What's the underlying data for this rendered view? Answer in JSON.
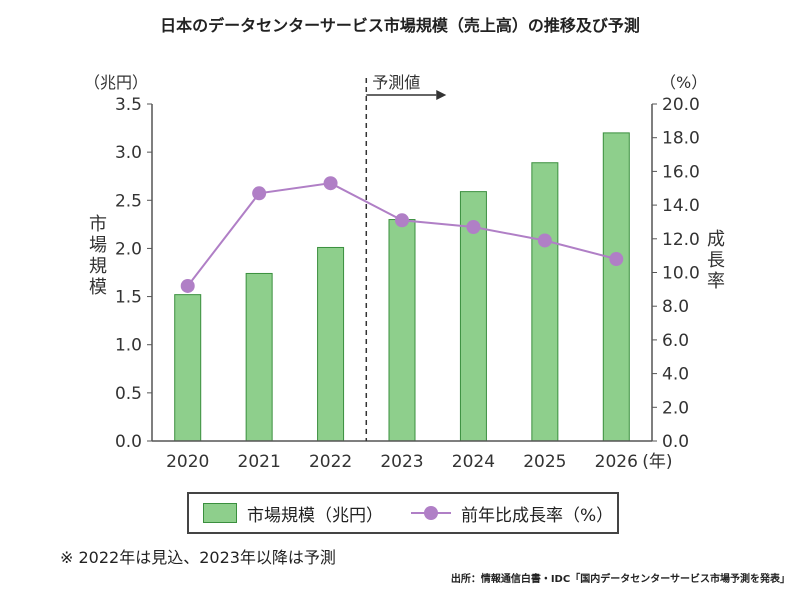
{
  "chart_data": {
    "type": "bar",
    "title": "日本のデータセンターサービス市場規模（売上高）の推移及び予測",
    "categories": [
      "2020",
      "2021",
      "2022",
      "2023",
      "2024",
      "2025",
      "2026"
    ],
    "x_unit": "(年)",
    "series": [
      {
        "name": "市場規模（兆円）",
        "type": "bar",
        "axis": "left",
        "color": "#8ecf8c",
        "values": [
          1.52,
          1.74,
          2.01,
          2.3,
          2.59,
          2.89,
          3.2
        ]
      },
      {
        "name": "前年比成長率（%）",
        "type": "line",
        "axis": "right",
        "color": "#b07fc6",
        "values": [
          9.2,
          14.7,
          15.3,
          13.1,
          12.7,
          11.9,
          10.8
        ]
      }
    ],
    "y_left": {
      "label": "市場規模",
      "unit": "（兆円）",
      "ylim": [
        0,
        3.5
      ],
      "ticks": [
        "0.0",
        "0.5",
        "1.0",
        "1.5",
        "2.0",
        "2.5",
        "3.0",
        "3.5"
      ]
    },
    "y_right": {
      "label": "成長率",
      "unit": "（%）",
      "ylim": [
        0,
        20
      ],
      "ticks": [
        "0.0",
        "2.0",
        "4.0",
        "6.0",
        "8.0",
        "10.0",
        "12.0",
        "14.0",
        "16.0",
        "18.0",
        "20.0"
      ]
    },
    "forecast_label": "予測値",
    "forecast_start_category": "2023",
    "legend_position": "bottom",
    "grid": false
  },
  "note": "※ 2022年は見込、2023年以降は予測",
  "source": "出所：情報通信白書・IDC「国内データセンターサービス市場予測を発表」"
}
